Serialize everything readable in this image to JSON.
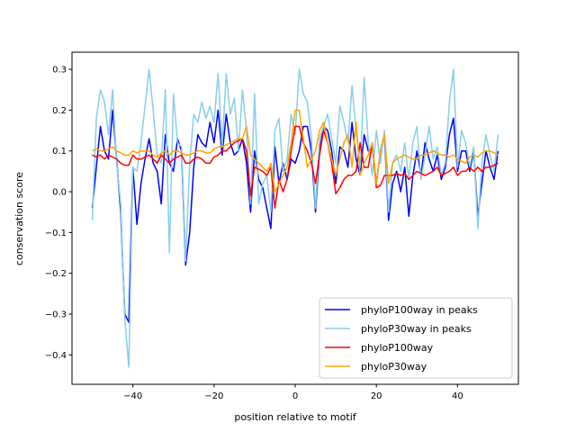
{
  "chart_data": {
    "type": "line",
    "title": "",
    "xlabel": "position relative to motif",
    "ylabel": "conservation score",
    "xlim": [
      -55,
      55
    ],
    "ylim": [
      -0.472,
      0.342
    ],
    "xticks": [
      -40,
      -20,
      0,
      20,
      40
    ],
    "xtick_labels": [
      "−40",
      "−20",
      "0",
      "20",
      "40"
    ],
    "yticks": [
      0.3,
      0.2,
      0.1,
      0.0,
      -0.1,
      -0.2,
      -0.3,
      -0.4
    ],
    "ytick_labels": [
      "0.3",
      "0.2",
      "0.1",
      "0.0",
      "−0.1",
      "−0.2",
      "−0.3",
      "−0.4"
    ],
    "grid": false,
    "legend_position": "lower-right",
    "x_start": -50,
    "x_step": 1,
    "series": [
      {
        "name": "phyloP100way in peaks",
        "color": "#0000ff",
        "values": [
          -0.04,
          0.06,
          0.16,
          0.1,
          0.08,
          0.2,
          0.08,
          -0.05,
          -0.3,
          -0.32,
          0.06,
          -0.08,
          0.02,
          0.08,
          0.13,
          0.07,
          0.05,
          -0.03,
          0.14,
          0.07,
          0.05,
          0.13,
          0.1,
          -0.18,
          -0.1,
          0.06,
          0.14,
          0.12,
          0.11,
          0.17,
          0.12,
          0.2,
          0.09,
          0.19,
          0.12,
          0.09,
          0.1,
          0.13,
          0.07,
          -0.05,
          0.1,
          0.03,
          0.01,
          -0.04,
          -0.09,
          0.11,
          0.02,
          0.07,
          0.03,
          0.08,
          0.07,
          0.1,
          0.16,
          0.16,
          0.1,
          -0.05,
          0.1,
          0.16,
          0.15,
          0.1,
          0.02,
          0.11,
          0.1,
          0.06,
          0.17,
          0.08,
          0.04,
          0.14,
          0.1,
          0.11,
          0.02,
          0.1,
          0.14,
          -0.07,
          0.02,
          0.05,
          0.0,
          0.06,
          -0.06,
          0.04,
          0.1,
          0.04,
          0.12,
          0.08,
          0.05,
          0.09,
          0.03,
          0.06,
          0.14,
          0.18,
          0.05,
          0.1,
          0.1,
          0.05,
          0.1,
          -0.06,
          0.02,
          0.1,
          0.06,
          0.03,
          0.1
        ]
      },
      {
        "name": "phyloP30way in peaks",
        "color": "#87ceeb",
        "values": [
          -0.07,
          0.18,
          0.25,
          0.22,
          0.14,
          0.25,
          0.07,
          -0.03,
          -0.31,
          -0.43,
          0.06,
          0.05,
          0.12,
          0.21,
          0.3,
          0.2,
          0.09,
          0.07,
          0.25,
          -0.15,
          0.24,
          0.12,
          0.11,
          -0.17,
          0.07,
          0.19,
          0.17,
          0.22,
          0.18,
          0.21,
          0.17,
          0.29,
          0.11,
          0.29,
          0.19,
          0.23,
          0.1,
          0.25,
          0.15,
          -0.03,
          0.24,
          -0.03,
          0.02,
          0.04,
          -0.05,
          0.15,
          0.18,
          0.05,
          0.08,
          0.19,
          0.14,
          0.3,
          0.24,
          0.22,
          0.13,
          -0.04,
          0.13,
          0.16,
          0.19,
          0.13,
          0.07,
          0.21,
          0.17,
          0.12,
          0.26,
          0.15,
          0.06,
          0.28,
          0.12,
          0.04,
          0.15,
          0.07,
          0.15,
          -0.05,
          0.07,
          0.09,
          0.05,
          0.12,
          0.03,
          0.12,
          0.16,
          0.03,
          0.09,
          0.16,
          0.08,
          0.11,
          0.04,
          0.07,
          0.22,
          0.3,
          0.06,
          0.15,
          0.12,
          0.06,
          0.11,
          -0.09,
          0.07,
          0.14,
          0.09,
          0.05,
          0.14
        ]
      },
      {
        "name": "phyloP100way",
        "color": "#ff0000",
        "values": [
          0.09,
          0.085,
          0.09,
          0.08,
          0.09,
          0.085,
          0.08,
          0.07,
          0.065,
          0.065,
          0.09,
          0.08,
          0.08,
          0.085,
          0.09,
          0.08,
          0.07,
          0.09,
          0.08,
          0.07,
          0.08,
          0.085,
          0.09,
          0.07,
          0.07,
          0.08,
          0.085,
          0.08,
          0.07,
          0.07,
          0.085,
          0.09,
          0.1,
          0.1,
          0.11,
          0.12,
          0.125,
          0.13,
          0.1,
          -0.01,
          0.06,
          0.055,
          0.05,
          0.04,
          0.06,
          -0.04,
          0.03,
          0.0,
          0.03,
          0.1,
          0.16,
          0.16,
          0.12,
          0.1,
          0.07,
          0.02,
          0.09,
          0.15,
          0.12,
          0.07,
          -0.005,
          0.01,
          0.03,
          0.04,
          0.04,
          0.05,
          0.12,
          0.06,
          0.06,
          0.12,
          0.01,
          0.015,
          0.04,
          0.04,
          0.04,
          0.045,
          0.04,
          0.045,
          0.03,
          0.04,
          0.05,
          0.045,
          0.04,
          0.045,
          0.05,
          0.06,
          0.04,
          0.045,
          0.05,
          0.06,
          0.04,
          0.05,
          0.05,
          0.06,
          0.05,
          0.06,
          0.05,
          0.06,
          0.06,
          0.065,
          0.07
        ]
      },
      {
        "name": "phyloP30way",
        "color": "#ffa500",
        "values": [
          0.1,
          0.105,
          0.1,
          0.1,
          0.105,
          0.11,
          0.1,
          0.095,
          0.09,
          0.09,
          0.1,
          0.095,
          0.1,
          0.1,
          0.1,
          0.09,
          0.085,
          0.095,
          0.1,
          0.09,
          0.1,
          0.1,
          0.095,
          0.09,
          0.09,
          0.095,
          0.1,
          0.1,
          0.095,
          0.095,
          0.105,
          0.11,
          0.11,
          0.115,
          0.12,
          0.125,
          0.13,
          0.13,
          0.16,
          0.09,
          0.08,
          0.07,
          0.06,
          0.05,
          0.07,
          0.0,
          0.02,
          0.04,
          0.06,
          0.12,
          0.2,
          0.2,
          0.13,
          0.06,
          0.08,
          0.1,
          0.15,
          0.17,
          0.12,
          0.08,
          0.04,
          0.08,
          0.12,
          0.14,
          0.06,
          0.17,
          0.04,
          0.07,
          0.09,
          0.12,
          0.02,
          0.1,
          0.14,
          0.02,
          0.07,
          0.08,
          0.085,
          0.09,
          0.085,
          0.08,
          0.08,
          0.09,
          0.09,
          0.095,
          0.1,
          0.095,
          0.09,
          0.09,
          0.085,
          0.09,
          0.08,
          0.075,
          0.07,
          0.085,
          0.09,
          0.085,
          0.095,
          0.1,
          0.1,
          0.095,
          0.09
        ]
      }
    ]
  }
}
